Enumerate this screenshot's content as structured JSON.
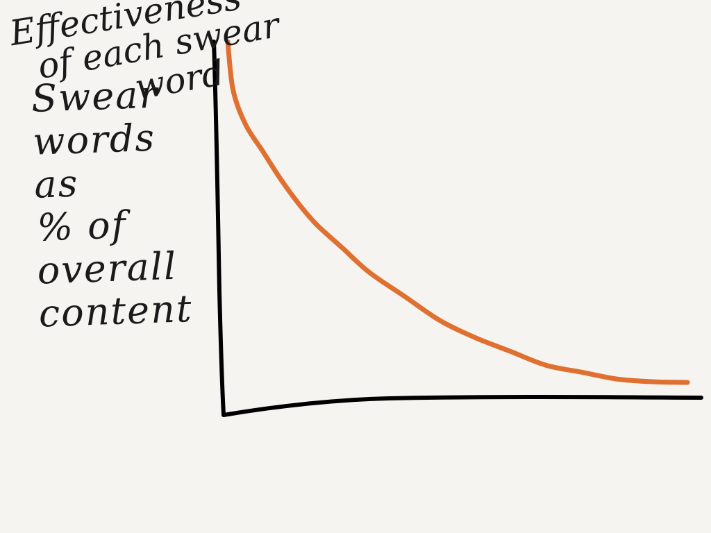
{
  "chart_data": {
    "type": "line",
    "ylabel": "Swear words as % of overall content",
    "xlabel": "Effectiveness of each swear word",
    "ylabel_lines": [
      "Swear",
      "words as",
      "% of",
      "overall",
      "content"
    ],
    "xlabel_lines": [
      "Effectiveness",
      "of each swear",
      "word"
    ],
    "series": [
      {
        "color": "#e07030",
        "x": [
          0.0,
          0.3,
          1.0,
          2.0,
          3.0,
          4.0,
          5.0,
          6.5,
          8.0,
          10.0,
          12.0,
          14.0,
          16.0,
          18.0,
          20.0,
          22.0,
          24.0,
          26.0
        ],
        "y": [
          100,
          86,
          76,
          68,
          60,
          53,
          47,
          40,
          33,
          26,
          19,
          14,
          10,
          6,
          4,
          2,
          1.2,
          1.0
        ]
      }
    ],
    "xlim": [
      0,
      26
    ],
    "ylim": [
      0,
      100
    ],
    "grid": false,
    "axis_color": "#000000"
  }
}
